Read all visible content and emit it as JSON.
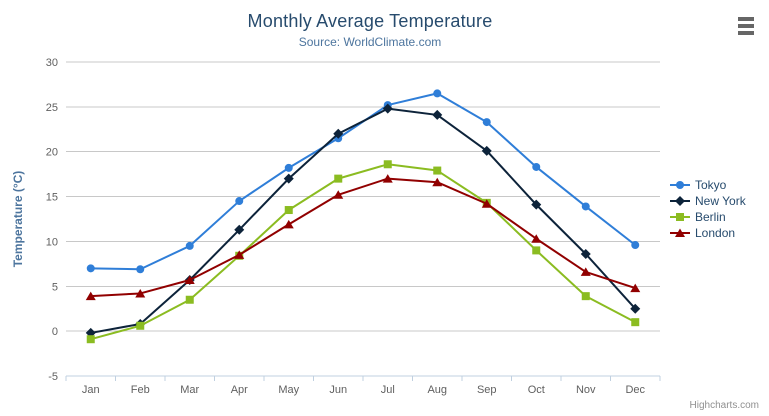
{
  "header": {
    "title": "Monthly Average Temperature",
    "subtitle": "Source: WorldClimate.com"
  },
  "credits_label": "Highcharts.com",
  "icons": {
    "export_menu": "hamburger-icon"
  },
  "colors": {
    "title": "#274b6d",
    "subtitle": "#4d759e",
    "axis_title": "#4d759e",
    "axis_label": "#606060",
    "grid": "#c8c8c8",
    "axis_line": "#c0d0e0",
    "credits": "#909090"
  },
  "chart_data": {
    "type": "line",
    "title": "Monthly Average Temperature",
    "subtitle": "Source: WorldClimate.com",
    "categories": [
      "Jan",
      "Feb",
      "Mar",
      "Apr",
      "May",
      "Jun",
      "Jul",
      "Aug",
      "Sep",
      "Oct",
      "Nov",
      "Dec"
    ],
    "series": [
      {
        "name": "Tokyo",
        "color": "#2f7ed8",
        "marker": "circle",
        "values": [
          7.0,
          6.9,
          9.5,
          14.5,
          18.2,
          21.5,
          25.2,
          26.5,
          23.3,
          18.3,
          13.9,
          9.6
        ]
      },
      {
        "name": "New York",
        "color": "#0d233a",
        "marker": "diamond",
        "values": [
          -0.2,
          0.8,
          5.7,
          11.3,
          17.0,
          22.0,
          24.8,
          24.1,
          20.1,
          14.1,
          8.6,
          2.5
        ]
      },
      {
        "name": "Berlin",
        "color": "#8bbc21",
        "marker": "square",
        "values": [
          -0.9,
          0.6,
          3.5,
          8.4,
          13.5,
          17.0,
          18.6,
          17.9,
          14.3,
          9.0,
          3.9,
          1.0
        ]
      },
      {
        "name": "London",
        "color": "#910000",
        "marker": "triangle",
        "values": [
          3.9,
          4.2,
          5.7,
          8.5,
          11.9,
          15.2,
          17.0,
          16.6,
          14.2,
          10.3,
          6.6,
          4.8
        ]
      }
    ],
    "xlabel": "",
    "ylabel": "Temperature (°C)",
    "ylim": [
      -5,
      30
    ],
    "ytick_step": 5,
    "yticks": [
      -5,
      0,
      5,
      10,
      15,
      20,
      25,
      30
    ],
    "grid": true,
    "legend_position": "right"
  }
}
